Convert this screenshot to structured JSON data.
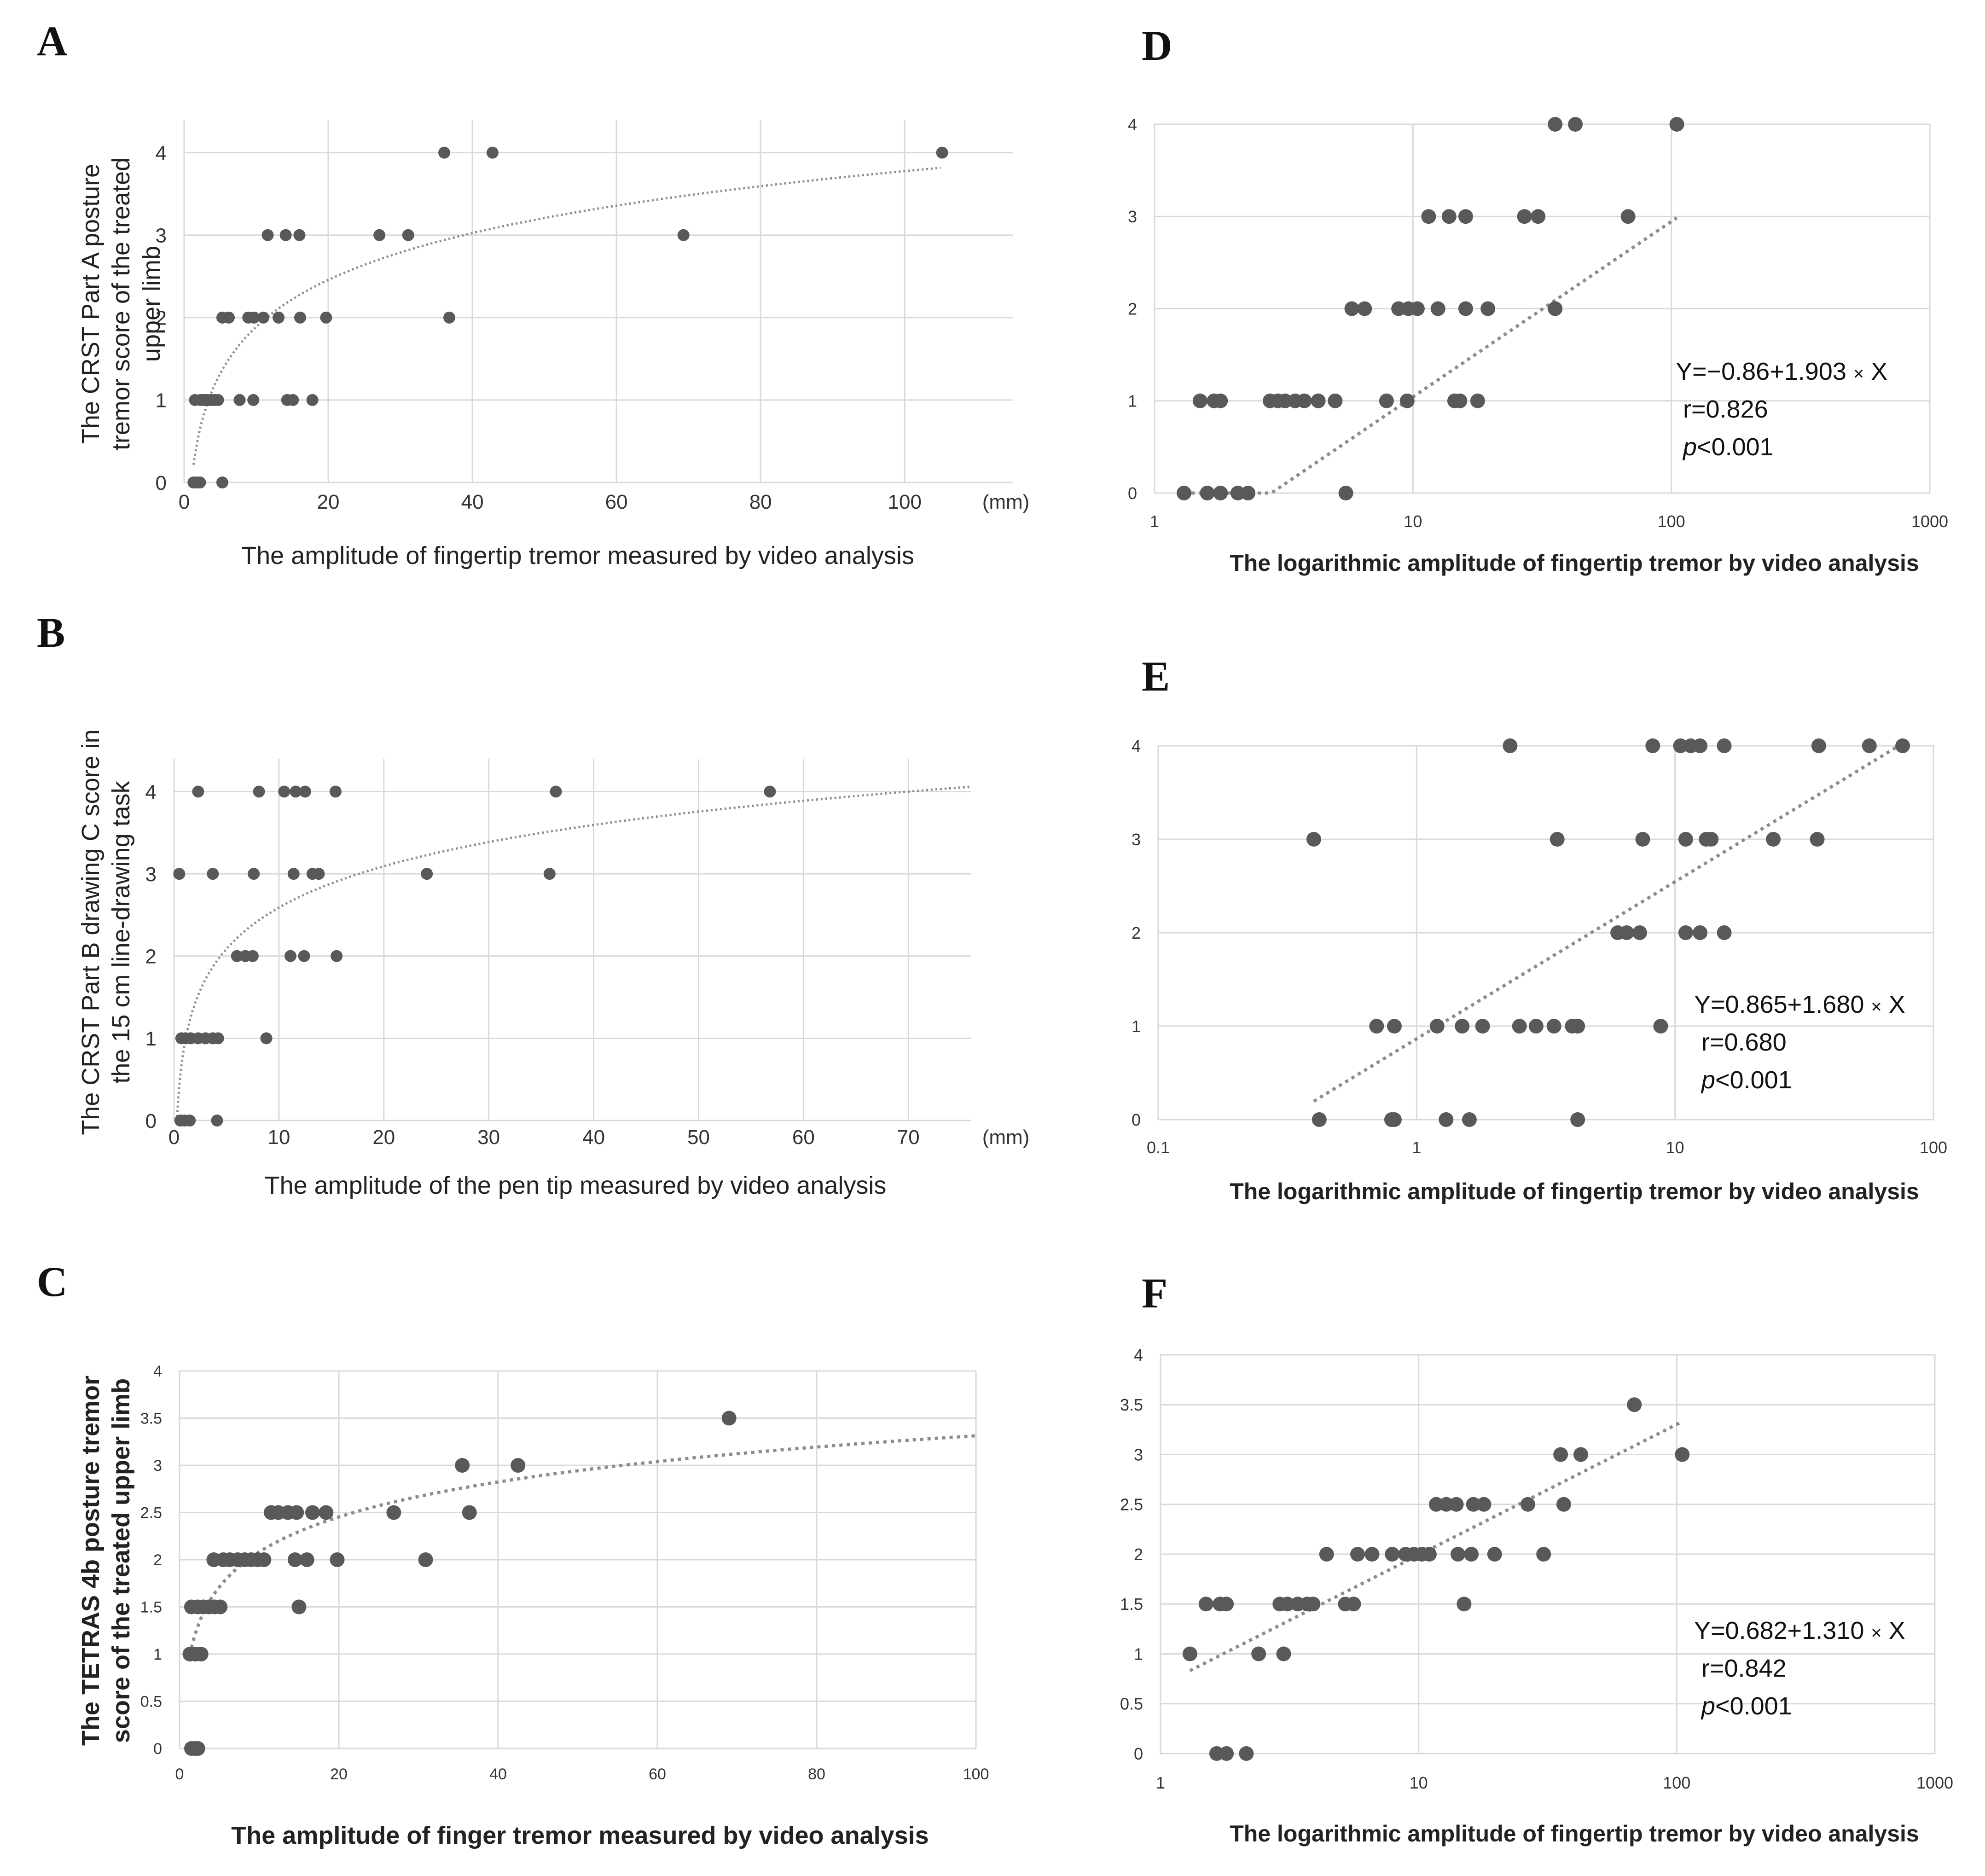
{
  "style": {
    "point_color": "#595959",
    "trend_color": "#8c8c8c",
    "grid_color": "#d9d9d9",
    "text_color": "#333333"
  },
  "chart_data": [
    {
      "panel": "A",
      "type": "scatter",
      "xlabel": "The amplitude of fingertip tremor measured by video analysis",
      "ylabel": [
        "The CRST Part A posture",
        "tremor score of the treated",
        "upper limb"
      ],
      "x_unit": "(mm)",
      "xlim": [
        0,
        115
      ],
      "ylim": [
        0,
        4.4
      ],
      "xticks": [
        0,
        20,
        40,
        60,
        80,
        100
      ],
      "yticks": [
        0,
        1,
        2,
        3,
        4
      ],
      "trendline": {
        "type": "logarithmic",
        "a": 0.0,
        "b": 0.82,
        "x_range": [
          1.3,
          105
        ]
      },
      "points": [
        [
          1.3,
          0
        ],
        [
          1.8,
          0
        ],
        [
          2.2,
          0
        ],
        [
          5.3,
          0
        ],
        [
          1.5,
          1
        ],
        [
          2.3,
          1
        ],
        [
          2.8,
          1
        ],
        [
          3.2,
          1
        ],
        [
          3.7,
          1
        ],
        [
          4.2,
          1
        ],
        [
          4.7,
          1
        ],
        [
          7.7,
          1
        ],
        [
          9.6,
          1
        ],
        [
          14.3,
          1
        ],
        [
          15.1,
          1
        ],
        [
          17.8,
          1
        ],
        [
          5.3,
          2
        ],
        [
          6.2,
          2
        ],
        [
          8.9,
          2
        ],
        [
          9.7,
          2
        ],
        [
          11.0,
          2
        ],
        [
          13.1,
          2
        ],
        [
          16.1,
          2
        ],
        [
          19.7,
          2
        ],
        [
          36.8,
          2
        ],
        [
          11.6,
          3
        ],
        [
          14.1,
          3
        ],
        [
          16.0,
          3
        ],
        [
          27.1,
          3
        ],
        [
          31.1,
          3
        ],
        [
          69.3,
          3
        ],
        [
          36.1,
          4
        ],
        [
          42.8,
          4
        ],
        [
          105.2,
          4
        ]
      ]
    },
    {
      "panel": "B",
      "type": "scatter",
      "xlabel": "The amplitude of the pen tip measured by video analysis",
      "ylabel": [
        "The CRST Part B drawing C score in",
        "the 15 cm line-drawing task"
      ],
      "x_unit": "(mm)",
      "xlim": [
        0,
        76
      ],
      "ylim": [
        0,
        4.4
      ],
      "xticks": [
        0,
        10,
        20,
        30,
        40,
        50,
        60,
        70
      ],
      "yticks": [
        0,
        1,
        2,
        3,
        4
      ],
      "trendline": {
        "type": "logarithmic",
        "a": 0.92,
        "b": 0.725,
        "x_range": [
          0.3,
          76
        ]
      },
      "points": [
        [
          0.6,
          0
        ],
        [
          1.0,
          0
        ],
        [
          1.5,
          0
        ],
        [
          4.1,
          0
        ],
        [
          0.7,
          1
        ],
        [
          1.1,
          1
        ],
        [
          1.6,
          1
        ],
        [
          2.3,
          1
        ],
        [
          3.0,
          1
        ],
        [
          3.7,
          1
        ],
        [
          4.2,
          1
        ],
        [
          8.8,
          1
        ],
        [
          6.0,
          2
        ],
        [
          6.8,
          2
        ],
        [
          7.5,
          2
        ],
        [
          11.1,
          2
        ],
        [
          12.4,
          2
        ],
        [
          15.5,
          2
        ],
        [
          0.5,
          3
        ],
        [
          3.7,
          3
        ],
        [
          7.6,
          3
        ],
        [
          11.4,
          3
        ],
        [
          13.2,
          3
        ],
        [
          13.8,
          3
        ],
        [
          24.1,
          3
        ],
        [
          35.8,
          3
        ],
        [
          2.3,
          4
        ],
        [
          8.1,
          4
        ],
        [
          10.5,
          4
        ],
        [
          11.6,
          4
        ],
        [
          12.5,
          4
        ],
        [
          15.4,
          4
        ],
        [
          36.4,
          4
        ],
        [
          56.8,
          4
        ]
      ]
    },
    {
      "panel": "C",
      "type": "scatter",
      "xlabel": "The amplitude of finger tremor measured by video analysis",
      "ylabel": [
        "The TETRAS 4b posture tremor",
        "score of the treated upper limb"
      ],
      "xlim": [
        0,
        100
      ],
      "ylim": [
        0,
        4
      ],
      "xticks": [
        0,
        20,
        40,
        60,
        80,
        100
      ],
      "yticks": [
        0,
        0.5,
        1,
        1.5,
        2,
        2.5,
        3,
        3.5,
        4
      ],
      "trendline": {
        "type": "logarithmic",
        "a": 0.85,
        "b": 0.535,
        "x_range": [
          1.3,
          100
        ]
      },
      "points": [
        [
          1.5,
          0
        ],
        [
          1.9,
          0
        ],
        [
          2.3,
          0
        ],
        [
          1.3,
          1
        ],
        [
          2.0,
          1
        ],
        [
          2.7,
          1
        ],
        [
          1.5,
          1.5
        ],
        [
          2.3,
          1.5
        ],
        [
          3.0,
          1.5
        ],
        [
          3.7,
          1.5
        ],
        [
          4.4,
          1.5
        ],
        [
          5.1,
          1.5
        ],
        [
          15.0,
          1.5
        ],
        [
          4.3,
          2
        ],
        [
          5.5,
          2
        ],
        [
          6.3,
          2
        ],
        [
          7.3,
          2
        ],
        [
          8.2,
          2
        ],
        [
          9.0,
          2
        ],
        [
          9.8,
          2
        ],
        [
          10.6,
          2
        ],
        [
          14.5,
          2
        ],
        [
          16.0,
          2
        ],
        [
          19.8,
          2
        ],
        [
          30.9,
          2
        ],
        [
          11.5,
          2.5
        ],
        [
          12.4,
          2.5
        ],
        [
          13.6,
          2.5
        ],
        [
          14.7,
          2.5
        ],
        [
          16.7,
          2.5
        ],
        [
          18.4,
          2.5
        ],
        [
          26.9,
          2.5
        ],
        [
          36.4,
          2.5
        ],
        [
          35.5,
          3
        ],
        [
          42.5,
          3
        ],
        [
          69.0,
          3.5
        ]
      ]
    },
    {
      "panel": "D",
      "type": "scatter",
      "xscale": "log",
      "xlabel": "The logarithmic amplitude of fingertip tremor  by video analysis",
      "xlim": [
        1,
        1000
      ],
      "ylim": [
        0,
        4
      ],
      "xticks": [
        1,
        10,
        100,
        1000
      ],
      "xtick_labels": [
        "1",
        "10",
        "100",
        "1000"
      ],
      "yticks": [
        0,
        1,
        2,
        3,
        4
      ],
      "equation": {
        "prefix": "Y=−0.86+1.903 ",
        "suffix": " X",
        "r": "r=0.826",
        "p_label": "p",
        "p_value": "<0.001"
      },
      "trendline": {
        "type": "linear_log10",
        "a": -0.86,
        "b": 1.903,
        "x_range": [
          1.3,
          105
        ]
      },
      "points": [
        [
          1.3,
          0
        ],
        [
          1.6,
          0
        ],
        [
          1.8,
          0
        ],
        [
          2.1,
          0
        ],
        [
          2.3,
          0
        ],
        [
          5.5,
          0
        ],
        [
          1.5,
          1
        ],
        [
          1.7,
          1
        ],
        [
          1.8,
          1
        ],
        [
          2.8,
          1
        ],
        [
          3.0,
          1
        ],
        [
          3.2,
          1
        ],
        [
          3.5,
          1
        ],
        [
          3.8,
          1
        ],
        [
          4.3,
          1
        ],
        [
          5.0,
          1
        ],
        [
          7.9,
          1
        ],
        [
          9.5,
          1
        ],
        [
          14.5,
          1
        ],
        [
          15.2,
          1
        ],
        [
          17.8,
          1
        ],
        [
          5.8,
          2
        ],
        [
          6.5,
          2
        ],
        [
          8.8,
          2
        ],
        [
          9.6,
          2
        ],
        [
          10.4,
          2
        ],
        [
          12.5,
          2
        ],
        [
          16.0,
          2
        ],
        [
          19.5,
          2
        ],
        [
          35.5,
          2
        ],
        [
          11.5,
          3
        ],
        [
          13.8,
          3
        ],
        [
          16.0,
          3
        ],
        [
          27.0,
          3
        ],
        [
          30.5,
          3
        ],
        [
          68.0,
          3
        ],
        [
          35.5,
          4
        ],
        [
          42.5,
          4
        ],
        [
          105,
          4
        ]
      ]
    },
    {
      "panel": "E",
      "type": "scatter",
      "xscale": "log",
      "xlabel": "The logarithmic amplitude of fingertip tremor  by video analysis",
      "xlim": [
        0.1,
        100
      ],
      "ylim": [
        0,
        4
      ],
      "xticks": [
        0.1,
        1,
        10,
        100
      ],
      "xtick_labels": [
        "0.1",
        "1",
        "10",
        "100"
      ],
      "yticks": [
        0,
        1,
        2,
        3,
        4
      ],
      "equation": {
        "prefix": "Y=0.865+1.680 ",
        "suffix": " X",
        "r": "r=0.680",
        "p_label": "p",
        "p_value": "<0.001"
      },
      "trendline": {
        "type": "linear_log10",
        "a": 0.865,
        "b": 1.68,
        "x_range": [
          0.4,
          76
        ]
      },
      "points": [
        [
          0.42,
          0
        ],
        [
          0.8,
          0
        ],
        [
          0.82,
          0
        ],
        [
          1.3,
          0
        ],
        [
          1.6,
          0
        ],
        [
          4.2,
          0
        ],
        [
          0.7,
          1
        ],
        [
          0.82,
          1
        ],
        [
          1.2,
          1
        ],
        [
          1.5,
          1
        ],
        [
          1.8,
          1
        ],
        [
          2.5,
          1
        ],
        [
          2.9,
          1
        ],
        [
          3.4,
          1
        ],
        [
          4.0,
          1
        ],
        [
          4.2,
          1
        ],
        [
          8.8,
          1
        ],
        [
          6.0,
          2
        ],
        [
          6.5,
          2
        ],
        [
          7.3,
          2
        ],
        [
          11.0,
          2
        ],
        [
          12.5,
          2
        ],
        [
          15.5,
          2
        ],
        [
          0.4,
          3
        ],
        [
          3.5,
          3
        ],
        [
          7.5,
          3
        ],
        [
          11.0,
          3
        ],
        [
          13.2,
          3
        ],
        [
          13.8,
          3
        ],
        [
          24.0,
          3
        ],
        [
          35.5,
          3
        ],
        [
          2.3,
          4
        ],
        [
          8.2,
          4
        ],
        [
          10.5,
          4
        ],
        [
          11.5,
          4
        ],
        [
          12.5,
          4
        ],
        [
          15.5,
          4
        ],
        [
          36.0,
          4
        ],
        [
          56.5,
          4
        ],
        [
          76.0,
          4
        ]
      ]
    },
    {
      "panel": "F",
      "type": "scatter",
      "xscale": "log",
      "xlabel": "The logarithmic amplitude of fingertip tremor  by video analysis",
      "xlim": [
        1,
        1000
      ],
      "ylim": [
        0,
        4
      ],
      "xticks": [
        1,
        10,
        100,
        1000
      ],
      "xtick_labels": [
        "1",
        "10",
        "100",
        "1000"
      ],
      "yticks": [
        0,
        0.5,
        1,
        1.5,
        2,
        2.5,
        3,
        3.5,
        4
      ],
      "equation": {
        "prefix": "Y=0.682+1.310 ",
        "suffix": " X",
        "r": "r=0.842",
        "p_label": "p",
        "p_value": "<0.001"
      },
      "trendline": {
        "type": "linear_log10",
        "a": 0.682,
        "b": 1.31,
        "x_range": [
          1.3,
          105
        ]
      },
      "points": [
        [
          1.65,
          0
        ],
        [
          1.8,
          0
        ],
        [
          2.15,
          0
        ],
        [
          1.3,
          1
        ],
        [
          2.4,
          1
        ],
        [
          3.0,
          1
        ],
        [
          1.5,
          1.5
        ],
        [
          1.7,
          1.5
        ],
        [
          1.8,
          1.5
        ],
        [
          2.9,
          1.5
        ],
        [
          3.1,
          1.5
        ],
        [
          3.4,
          1.5
        ],
        [
          3.7,
          1.5
        ],
        [
          3.9,
          1.5
        ],
        [
          5.2,
          1.5
        ],
        [
          5.6,
          1.5
        ],
        [
          15.0,
          1.5
        ],
        [
          4.4,
          2
        ],
        [
          5.8,
          2
        ],
        [
          6.6,
          2
        ],
        [
          7.9,
          2
        ],
        [
          8.9,
          2
        ],
        [
          9.6,
          2
        ],
        [
          10.3,
          2
        ],
        [
          11.0,
          2
        ],
        [
          14.2,
          2
        ],
        [
          16.0,
          2
        ],
        [
          19.7,
          2
        ],
        [
          30.5,
          2
        ],
        [
          11.7,
          2.5
        ],
        [
          12.8,
          2.5
        ],
        [
          14.0,
          2.5
        ],
        [
          16.3,
          2.5
        ],
        [
          17.9,
          2.5
        ],
        [
          26.5,
          2.5
        ],
        [
          36.5,
          2.5
        ],
        [
          35.5,
          3
        ],
        [
          42.5,
          3
        ],
        [
          105,
          3
        ],
        [
          68.5,
          3.5
        ]
      ]
    }
  ]
}
